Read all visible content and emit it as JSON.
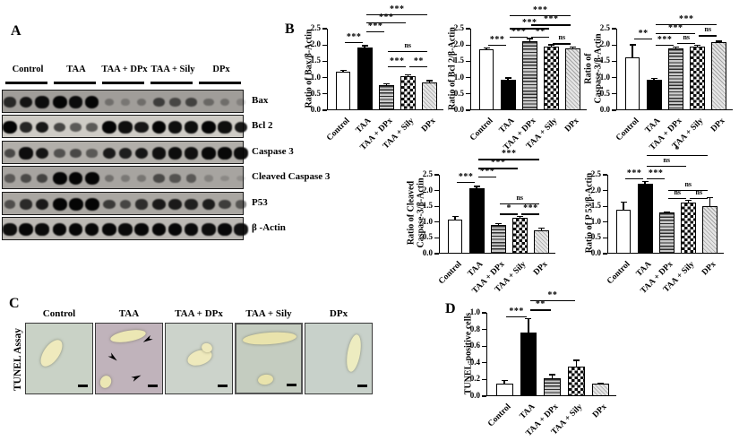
{
  "figure": {
    "panelA": {
      "label": "A",
      "groups": [
        "Control",
        "TAA",
        "TAA + DPx",
        "TAA + Sily",
        "DPx"
      ],
      "blots": [
        {
          "name": "Bax",
          "bg": "#a09d99",
          "lanes": [
            0.72,
            0.85,
            0.9,
            1,
            0.9,
            0.96,
            0.25,
            0.2,
            0.26,
            0.58,
            0.52,
            0.55,
            0.3,
            0.26,
            0.14
          ]
        },
        {
          "name": "Bcl 2",
          "bg": "#cfccc6",
          "lanes": [
            0.95,
            0.78,
            0.85,
            0.62,
            0.52,
            0.52,
            0.95,
            0.9,
            0.86,
            0.95,
            0.9,
            0.9,
            0.96,
            0.9,
            0.85
          ]
        },
        {
          "name": "Caspase 3",
          "bg": "#b2afaa",
          "lanes": [
            0.55,
            0.9,
            0.85,
            0.5,
            0.55,
            0.45,
            0.82,
            0.8,
            0.85,
            0.88,
            0.9,
            0.88,
            0.93,
            0.93,
            0.9
          ]
        },
        {
          "name": "Cleaved Caspase 3",
          "bg": "#a7a4a0",
          "lanes": [
            0.42,
            0.52,
            0.56,
            1,
            0.95,
            1,
            0.28,
            0.22,
            0.24,
            0.52,
            0.46,
            0.42,
            0.16,
            0.12,
            0.08
          ]
        },
        {
          "name": "P53",
          "bg": "#aaa7a2",
          "lanes": [
            0.5,
            0.72,
            0.82,
            1,
            1,
            1,
            0.62,
            0.55,
            0.7,
            0.82,
            0.82,
            0.78,
            0.8,
            0.6,
            0.45
          ]
        },
        {
          "name": "β -Actin",
          "bg": "#bcb9b4",
          "lanes": [
            0.9,
            0.94,
            0.92,
            0.94,
            0.94,
            0.94,
            0.94,
            0.92,
            0.94,
            0.94,
            0.94,
            0.92,
            0.9,
            0.93,
            0.88
          ]
        }
      ]
    },
    "panelB": {
      "label": "B"
    },
    "panelC": {
      "label": "C",
      "row_label": "TUNEL Assay",
      "images": [
        {
          "label": "Control",
          "base": "#c9d2c6",
          "speckle": "#46566f",
          "cyto": "rgba(130,165,150,0.55)",
          "vessel": "#efeabd",
          "dense": false,
          "arrows": false
        },
        {
          "label": "TAA",
          "base": "#c0b3bb",
          "speckle": "#2c2c3e",
          "cyto": "rgba(150,130,150,0.5)",
          "vessel": "#ece7b4",
          "dense": true,
          "arrows": true
        },
        {
          "label": "TAA + DPx",
          "base": "#ccd3cb",
          "speckle": "#4e5f7a",
          "cyto": "rgba(135,170,150,0.5)",
          "vessel": "#eee9bc",
          "dense": false,
          "arrows": false
        },
        {
          "label": "TAA + Sily",
          "base": "#c4ccc0",
          "speckle": "#43546c",
          "cyto": "rgba(150,160,120,0.5)",
          "vessel": "#e9e3ac",
          "dense": false,
          "arrows": false
        },
        {
          "label": "DPx",
          "base": "#c8d1ca",
          "speckle": "#4f617c",
          "cyto": "rgba(140,170,155,0.5)",
          "vessel": "#edecc0",
          "dense": false,
          "arrows": false
        }
      ]
    },
    "panelD": {
      "label": "D"
    }
  },
  "chart_data": [
    {
      "id": "bax",
      "type": "bar",
      "ylabel_lines": [
        "Ratio of Bax/β-Actin"
      ],
      "categories": [
        "Control",
        "TAA",
        "TAA + DPx",
        "TAA + Sily",
        "DPx"
      ],
      "values": [
        1.18,
        1.93,
        0.78,
        1.05,
        0.84
      ],
      "errors": [
        0.04,
        0.05,
        0.03,
        0.04,
        0.07
      ],
      "ylim": [
        0,
        2.5
      ],
      "ytick": 0.5,
      "bar_styles": [
        "white",
        "black",
        "hlines",
        "check",
        "diag"
      ],
      "comparisons": [
        {
          "a": 0,
          "b": 1,
          "label": "***",
          "y": 2.09
        },
        {
          "a": 1,
          "b": 2,
          "label": "***",
          "y": 2.42
        },
        {
          "a": 1,
          "b": 3,
          "label": "***",
          "y": 2.7
        },
        {
          "a": 1,
          "b": 4,
          "label": "***",
          "y": 2.95
        },
        {
          "a": 2,
          "b": 3,
          "label": "***",
          "y": 1.35
        },
        {
          "a": 3,
          "b": 4,
          "label": "**",
          "y": 1.35
        },
        {
          "a": 2,
          "b": 4,
          "label": "ns",
          "y": 1.81
        }
      ]
    },
    {
      "id": "bcl2",
      "type": "bar",
      "ylabel_lines": [
        "Ratio of Bcl 2/β-Actin"
      ],
      "categories": [
        "Control",
        "TAA",
        "TAA + DPx",
        "TAA + Sily",
        "DPx"
      ],
      "values": [
        1.88,
        0.94,
        2.12,
        1.96,
        1.9
      ],
      "errors": [
        0.03,
        0.05,
        0.08,
        0.05,
        0.03
      ],
      "ylim": [
        0,
        2.5
      ],
      "ytick": 0.5,
      "bar_styles": [
        "white",
        "black",
        "hlines",
        "check",
        "diag"
      ],
      "comparisons": [
        {
          "a": 0,
          "b": 1,
          "label": "***",
          "y": 2.0
        },
        {
          "a": 1,
          "b": 2,
          "label": "***",
          "y": 2.25
        },
        {
          "a": 2,
          "b": 3,
          "label": "**",
          "y": 2.25
        },
        {
          "a": 3,
          "b": 4,
          "label": "ns",
          "y": 2.05
        },
        {
          "a": 1,
          "b": 3,
          "label": "***",
          "y": 2.52
        },
        {
          "a": 2,
          "b": 4,
          "label": "***",
          "y": 2.63
        },
        {
          "a": 1,
          "b": 4,
          "label": "***",
          "y": 2.92
        }
      ]
    },
    {
      "id": "casp3",
      "type": "bar",
      "ylabel_lines": [
        "Ratio of",
        "Caspase-3/β-Actin"
      ],
      "categories": [
        "Control",
        "TAA",
        "TAA + DPx",
        "TAA + Sily",
        "DPx"
      ],
      "values": [
        1.63,
        0.93,
        1.9,
        1.95,
        2.08
      ],
      "errors": [
        0.38,
        0.04,
        0.04,
        0.04,
        0.04
      ],
      "ylim": [
        0,
        2.5
      ],
      "ytick": 0.5,
      "bar_styles": [
        "white",
        "black",
        "hlines",
        "check",
        "diag"
      ],
      "comparisons": [
        {
          "a": 0,
          "b": 1,
          "label": "**",
          "y": 2.2
        },
        {
          "a": 1,
          "b": 2,
          "label": "***",
          "y": 2.0
        },
        {
          "a": 2,
          "b": 3,
          "label": "ns",
          "y": 2.07
        },
        {
          "a": 1,
          "b": 3,
          "label": "***",
          "y": 2.37
        },
        {
          "a": 3,
          "b": 4,
          "label": "ns",
          "y": 2.3
        },
        {
          "a": 1,
          "b": 4,
          "label": "***",
          "y": 2.64
        }
      ]
    },
    {
      "id": "ccasp3",
      "type": "bar",
      "ylabel_lines": [
        "Ratio of Cleaved",
        "Caspase-3/β-Actin"
      ],
      "categories": [
        "Control",
        "TAA",
        "TAA + DPx",
        "TAA + Sily",
        "DPx"
      ],
      "values": [
        1.08,
        2.08,
        0.92,
        1.15,
        0.73
      ],
      "errors": [
        0.1,
        0.05,
        0.03,
        0.03,
        0.08
      ],
      "ylim": [
        0,
        2.5
      ],
      "ytick": 0.5,
      "bar_styles": [
        "white",
        "black",
        "hlines",
        "check",
        "diag"
      ],
      "comparisons": [
        {
          "a": 0,
          "b": 1,
          "label": "***",
          "y": 2.27
        },
        {
          "a": 1,
          "b": 2,
          "label": "***",
          "y": 2.45
        },
        {
          "a": 2,
          "b": 3,
          "label": "*",
          "y": 1.27
        },
        {
          "a": 3,
          "b": 4,
          "label": "***",
          "y": 1.27
        },
        {
          "a": 2,
          "b": 4,
          "label": "ns",
          "y": 1.6
        },
        {
          "a": 1,
          "b": 3,
          "label": "***",
          "y": 2.72
        },
        {
          "a": 1,
          "b": 4,
          "label": "***",
          "y": 3.0
        }
      ]
    },
    {
      "id": "p53",
      "type": "bar",
      "ylabel_lines": [
        "Ratio of P 53/β-Actin"
      ],
      "categories": [
        "Control",
        "TAA",
        "TAA + DPx",
        "TAA + Sily",
        "DPx"
      ],
      "values": [
        1.38,
        2.22,
        1.3,
        1.63,
        1.5
      ],
      "errors": [
        0.25,
        0.07,
        0.03,
        0.06,
        0.28
      ],
      "ylim": [
        0,
        2.5
      ],
      "ytick": 0.5,
      "bar_styles": [
        "white",
        "black",
        "hlines",
        "check",
        "diag"
      ],
      "comparisons": [
        {
          "a": 0,
          "b": 1,
          "label": "***",
          "y": 2.4
        },
        {
          "a": 1,
          "b": 2,
          "label": "***",
          "y": 2.4
        },
        {
          "a": 2,
          "b": 3,
          "label": "ns",
          "y": 1.76
        },
        {
          "a": 3,
          "b": 4,
          "label": "ns",
          "y": 1.76
        },
        {
          "a": 2,
          "b": 4,
          "label": "ns",
          "y": 2.02
        },
        {
          "a": 1,
          "b": 3,
          "label": "ns",
          "y": 2.78
        },
        {
          "a": 1,
          "b": 4,
          "label": "*",
          "y": 3.13
        }
      ]
    },
    {
      "id": "tunelcells",
      "type": "bar",
      "ylabel_lines": [
        "TUNEL-positive cells"
      ],
      "categories": [
        "Control",
        "TAA",
        "TAA + DPx",
        "TAA + Sily",
        "DPx"
      ],
      "values": [
        0.15,
        0.76,
        0.21,
        0.35,
        0.15
      ],
      "errors": [
        0.04,
        0.17,
        0.05,
        0.08,
        0.01
      ],
      "ylim": [
        0,
        1.0
      ],
      "ytick": 0.2,
      "bar_styles": [
        "white",
        "black",
        "hlines",
        "check",
        "diag"
      ],
      "comparisons": [
        {
          "a": 0,
          "b": 1,
          "label": "***",
          "y": 0.96
        },
        {
          "a": 1,
          "b": 2,
          "label": "**",
          "y": 1.04
        },
        {
          "a": 1,
          "b": 3,
          "label": "**",
          "y": 1.15
        }
      ]
    }
  ]
}
